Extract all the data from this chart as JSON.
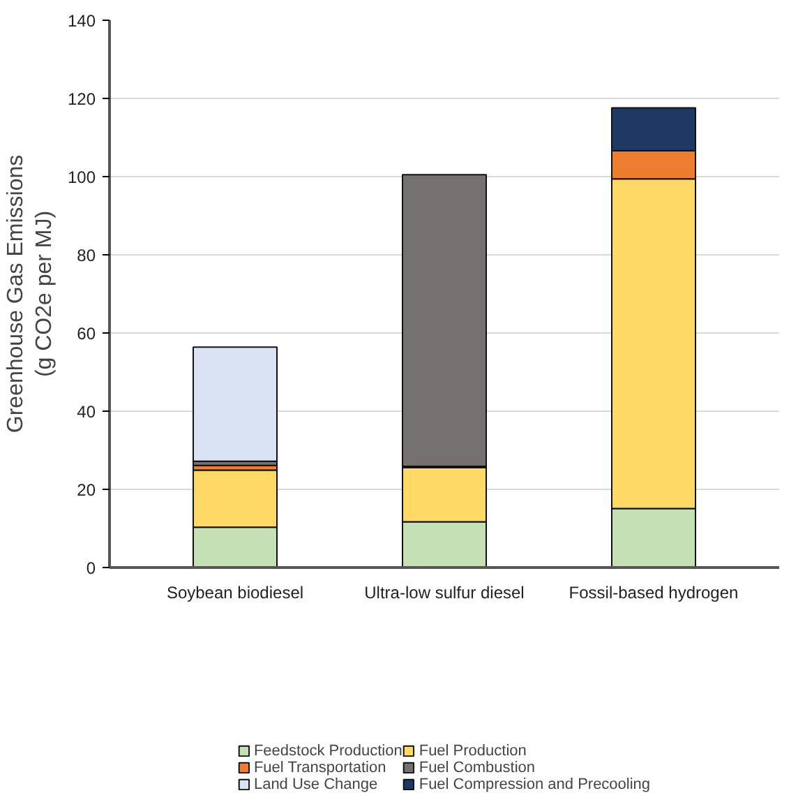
{
  "chart_data": {
    "type": "bar",
    "stacked": true,
    "ylabel": "Greenhouse Gas Emissions\n(g CO2e per MJ)",
    "categories": [
      "Soybean biodiesel",
      "Ultra-low sulfur diesel",
      "Fossil-based hydrogen"
    ],
    "series": [
      {
        "name": "Feedstock Production",
        "color": "#c5e0b4",
        "values": [
          10.3,
          11.7,
          15.1
        ]
      },
      {
        "name": "Fuel Production",
        "color": "#ffd966",
        "values": [
          14.6,
          13.9,
          84.3
        ]
      },
      {
        "name": "Fuel Transportation",
        "color": "#ed7d31",
        "values": [
          1.2,
          0.3,
          7.2
        ]
      },
      {
        "name": "Fuel Combustion",
        "color": "#767171",
        "values": [
          1.1,
          74.6,
          0
        ]
      },
      {
        "name": "Land Use Change",
        "color": "#dae3f3",
        "values": [
          29.2,
          0,
          0
        ]
      },
      {
        "name": "Fuel Compression and Precooling",
        "color": "#203864",
        "values": [
          0,
          0,
          11.0
        ]
      }
    ],
    "ylim": [
      0,
      140
    ],
    "yticks": [
      0,
      20,
      40,
      60,
      80,
      100,
      120,
      140
    ],
    "grid": "y",
    "legend": "bottom"
  }
}
